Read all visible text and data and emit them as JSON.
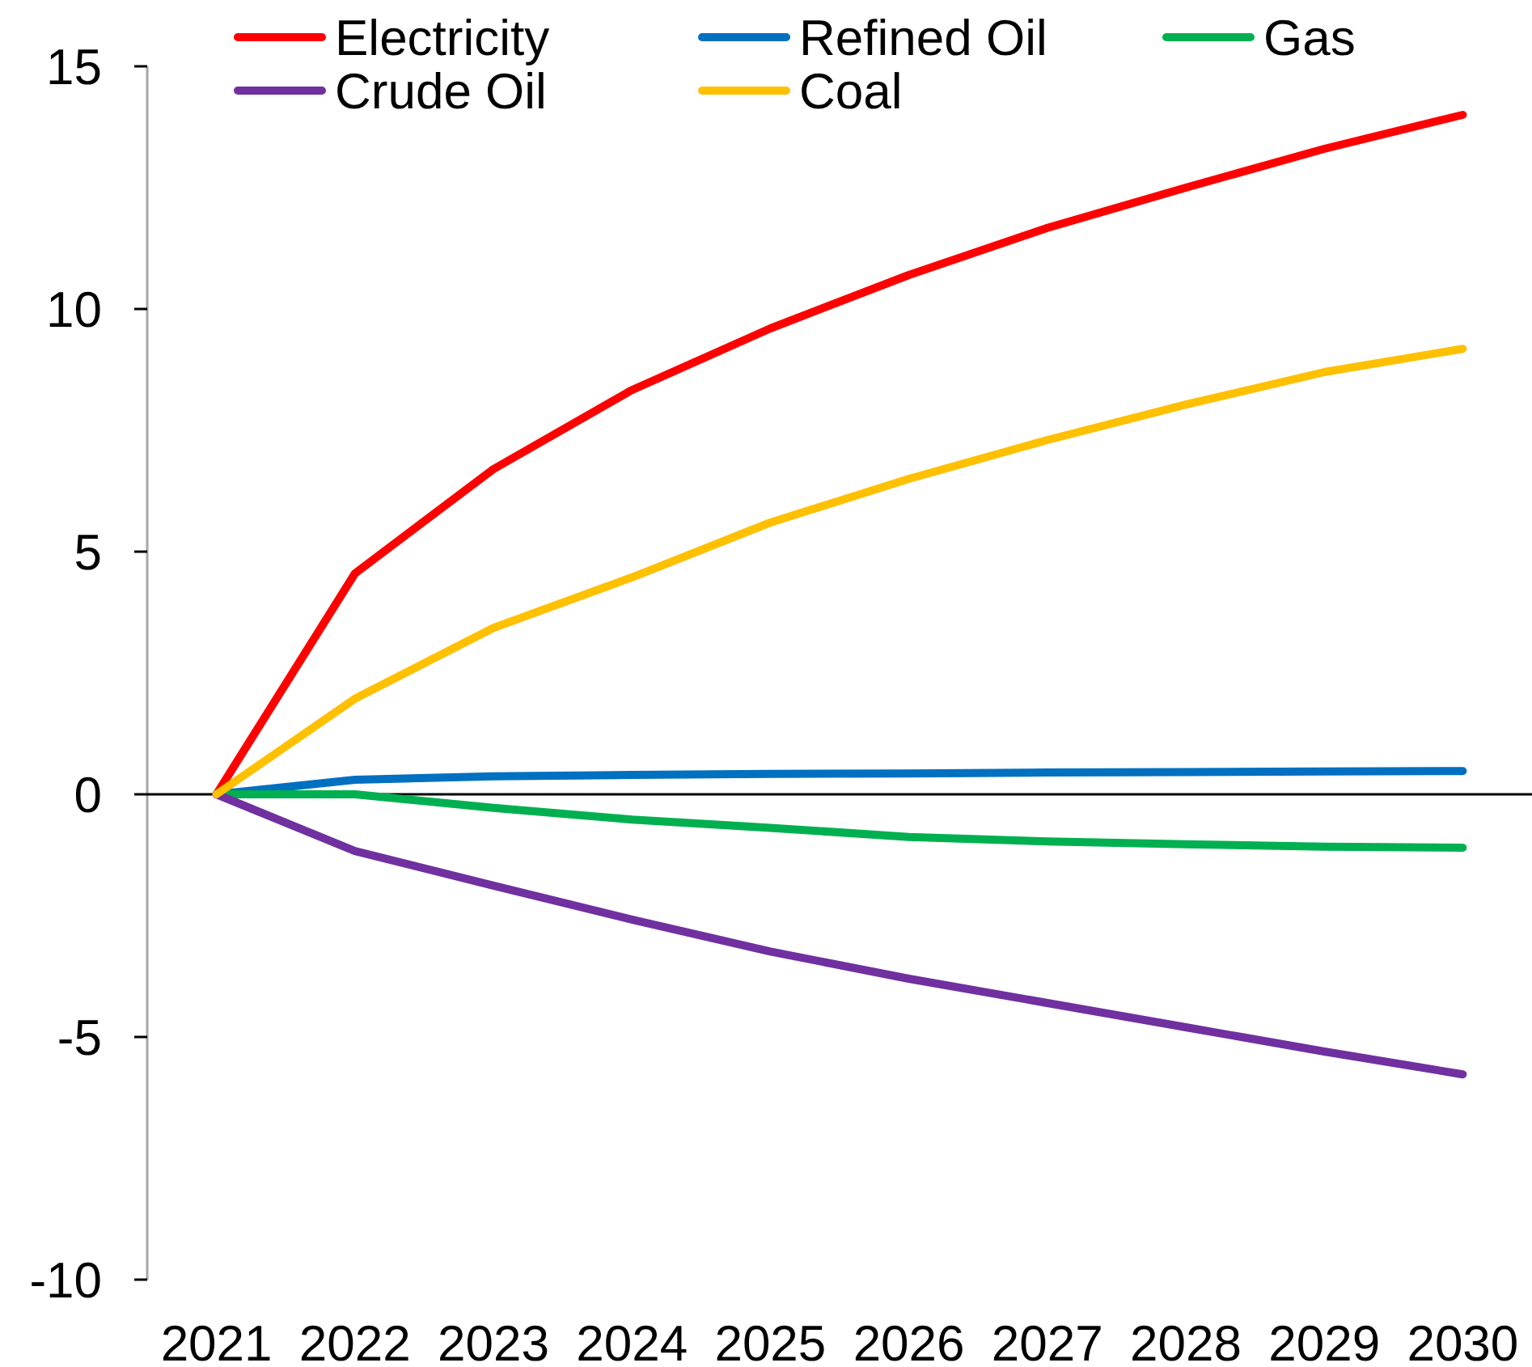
{
  "chart_data": {
    "type": "line",
    "categories": [
      "2021",
      "2022",
      "2023",
      "2024",
      "2025",
      "2026",
      "2027",
      "2028",
      "2029",
      "2030"
    ],
    "series": [
      {
        "name": "Electricity",
        "color": "#ff0000",
        "values": [
          0,
          4.55,
          6.7,
          8.33,
          9.6,
          10.7,
          11.67,
          12.5,
          13.3,
          14.0
        ]
      },
      {
        "name": "Refined Oil",
        "color": "#0070c0",
        "values": [
          0,
          0.3,
          0.37,
          0.4,
          0.42,
          0.43,
          0.45,
          0.46,
          0.47,
          0.48
        ]
      },
      {
        "name": "Gas",
        "color": "#00b050",
        "values": [
          0,
          0,
          -0.28,
          -0.52,
          -0.69,
          -0.88,
          -0.97,
          -1.03,
          -1.08,
          -1.1
        ]
      },
      {
        "name": "Crude Oil",
        "color": "#7030a0",
        "values": [
          0,
          -1.17,
          -1.88,
          -2.58,
          -3.24,
          -3.8,
          -4.3,
          -4.8,
          -5.3,
          -5.77
        ]
      },
      {
        "name": "Coal",
        "color": "#ffc000",
        "values": [
          0,
          1.97,
          3.43,
          4.47,
          5.6,
          6.5,
          7.3,
          8.03,
          8.7,
          9.18
        ]
      }
    ],
    "ylim": [
      -10,
      15
    ],
    "yticks": [
      -10,
      -5,
      0,
      5,
      10,
      15
    ],
    "legend": "top"
  }
}
